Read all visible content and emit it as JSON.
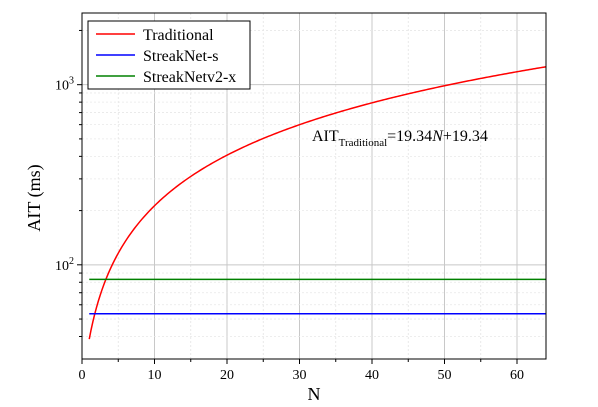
{
  "chart_data": {
    "type": "line",
    "xlabel": "N",
    "ylabel": "AIT (ms)",
    "xlim": [
      0,
      64
    ],
    "ylim": [
      30,
      2500
    ],
    "yscale": "log",
    "grid": true,
    "legend_position": "top-left",
    "x_ticks": [
      0,
      10,
      20,
      30,
      40,
      50,
      60
    ],
    "x_tick_labels": [
      "0",
      "10",
      "20",
      "30",
      "40",
      "50",
      "60"
    ],
    "y_ticks": [
      100,
      1000
    ],
    "y_tick_labels": [
      {
        "base": "10",
        "exp": "2"
      },
      {
        "base": "10",
        "exp": "3"
      }
    ],
    "series": [
      {
        "name": "Traditional",
        "color": "#ff0000",
        "x": [
          1,
          2,
          3,
          4,
          5,
          6,
          8,
          10,
          12,
          16,
          20,
          24,
          28,
          32,
          36,
          40,
          44,
          48,
          52,
          56,
          60,
          64
        ],
        "y": [
          38.68,
          58.02,
          77.36,
          96.7,
          116.04,
          135.38,
          174.06,
          212.74,
          251.42,
          328.78,
          406.14,
          483.5,
          560.86,
          638.22,
          715.58,
          792.94,
          870.3,
          947.66,
          1025.02,
          1102.38,
          1179.74,
          1257.1
        ]
      },
      {
        "name": "StreakNet-s",
        "color": "#0000ff",
        "x": [
          1,
          64
        ],
        "y": [
          53.5,
          53.5
        ]
      },
      {
        "name": "StreakNetv2-x",
        "color": "#008000",
        "x": [
          1,
          64
        ],
        "y": [
          83,
          83
        ]
      }
    ],
    "annotation": {
      "main": "AIT",
      "subscript": "Traditional",
      "formula_prefix": "=19.34",
      "formula_var": "N",
      "formula_suffix": "+19.34"
    }
  }
}
